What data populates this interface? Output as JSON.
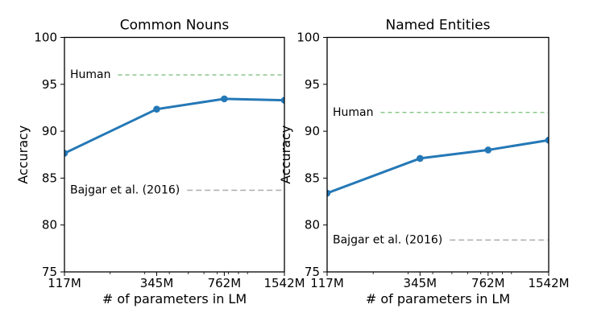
{
  "figure": {
    "background": "#ffffff",
    "text_color": "#000000",
    "axis_color": "#000000"
  },
  "chart_data": [
    {
      "type": "line",
      "title": "Common Nouns",
      "xlabel": "# of parameters in LM",
      "ylabel": "Accuracy",
      "x_scale": "log",
      "xlim": [
        117,
        1542
      ],
      "x": [
        117,
        345,
        762,
        1542
      ],
      "x_tick_labels": [
        "117M",
        "345M",
        "762M",
        "1542M"
      ],
      "x_minor_ticks": [
        200,
        300,
        400,
        500,
        600,
        700,
        800,
        900,
        1000
      ],
      "ylim": [
        75,
        100
      ],
      "y_ticks": [
        75,
        80,
        85,
        90,
        95,
        100
      ],
      "grid": false,
      "legend": "none",
      "series": [
        {
          "color": "#2478b6",
          "marker": "circle",
          "values": [
            87.65,
            92.35,
            93.45,
            93.3
          ]
        }
      ],
      "reference_lines": [
        {
          "label": "Human",
          "value": 96.0,
          "color": "#8bc88b",
          "dash": "5 4"
        },
        {
          "label": "Bajgar et al. (2016)",
          "value": 83.7,
          "color": "#ababab",
          "dash": "7 4"
        }
      ]
    },
    {
      "type": "line",
      "title": "Named Entities",
      "xlabel": "# of parameters in LM",
      "ylabel": "Accuracy",
      "x_scale": "log",
      "xlim": [
        117,
        1542
      ],
      "x": [
        117,
        345,
        762,
        1542
      ],
      "x_tick_labels": [
        "117M",
        "345M",
        "762M",
        "1542M"
      ],
      "x_minor_ticks": [
        200,
        300,
        400,
        500,
        600,
        700,
        800,
        900,
        1000
      ],
      "ylim": [
        75,
        100
      ],
      "y_ticks": [
        75,
        80,
        85,
        90,
        95,
        100
      ],
      "grid": false,
      "legend": "none",
      "series": [
        {
          "color": "#2478b6",
          "marker": "circle",
          "values": [
            83.4,
            87.1,
            88.0,
            89.05
          ]
        }
      ],
      "reference_lines": [
        {
          "label": "Human",
          "value": 92.0,
          "color": "#8bc88b",
          "dash": "5 4"
        },
        {
          "label": "Bajgar et al. (2016)",
          "value": 78.4,
          "color": "#ababab",
          "dash": "7 4"
        }
      ]
    }
  ]
}
